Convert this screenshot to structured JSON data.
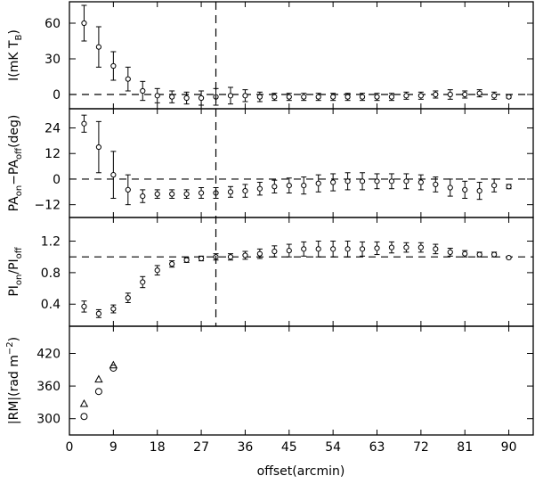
{
  "chart_data": {
    "type": "scatter",
    "x_axis": {
      "label": "offset(arcmin)",
      "range": [
        0,
        95
      ],
      "ticks": [
        0,
        9,
        18,
        27,
        36,
        45,
        54,
        63,
        72,
        81,
        90
      ]
    },
    "panels": [
      {
        "id": "intensity",
        "ylabel_parts": [
          "I(mK T",
          "B",
          ")"
        ],
        "ylim": [
          -12,
          78
        ],
        "yticks": [
          0,
          30,
          60
        ],
        "reference_y": 0,
        "marker": "circle-errorbar",
        "points": [
          {
            "x": 3,
            "y": 60,
            "err": 15
          },
          {
            "x": 6,
            "y": 40,
            "err": 17
          },
          {
            "x": 9,
            "y": 24,
            "err": 12
          },
          {
            "x": 12,
            "y": 13,
            "err": 10
          },
          {
            "x": 15,
            "y": 3,
            "err": 8
          },
          {
            "x": 18,
            "y": -1,
            "err": 6
          },
          {
            "x": 21,
            "y": -2,
            "err": 5
          },
          {
            "x": 24,
            "y": -3,
            "err": 5
          },
          {
            "x": 27,
            "y": -3,
            "err": 6
          },
          {
            "x": 30,
            "y": -2,
            "err": 7
          },
          {
            "x": 33,
            "y": -1,
            "err": 7
          },
          {
            "x": 36,
            "y": -1,
            "err": 5
          },
          {
            "x": 39,
            "y": -2,
            "err": 4
          },
          {
            "x": 42,
            "y": -2,
            "err": 3
          },
          {
            "x": 45,
            "y": -2,
            "err": 3
          },
          {
            "x": 48,
            "y": -2,
            "err": 3
          },
          {
            "x": 51,
            "y": -2,
            "err": 3
          },
          {
            "x": 54,
            "y": -2,
            "err": 3
          },
          {
            "x": 57,
            "y": -2,
            "err": 3
          },
          {
            "x": 60,
            "y": -2,
            "err": 3
          },
          {
            "x": 63,
            "y": -2,
            "err": 3
          },
          {
            "x": 66,
            "y": -2,
            "err": 3
          },
          {
            "x": 69,
            "y": -1,
            "err": 3
          },
          {
            "x": 72,
            "y": -1,
            "err": 3
          },
          {
            "x": 75,
            "y": 0,
            "err": 3
          },
          {
            "x": 78,
            "y": 0,
            "err": 4
          },
          {
            "x": 81,
            "y": 0,
            "err": 3
          },
          {
            "x": 84,
            "y": 1,
            "err": 3
          },
          {
            "x": 87,
            "y": -1,
            "err": 3
          },
          {
            "x": 90,
            "y": -2,
            "err": 1
          }
        ]
      },
      {
        "id": "pa",
        "ylabel_parts": [
          "PA",
          "on",
          "−PA",
          "off",
          "(deg)"
        ],
        "ylim": [
          -18,
          33
        ],
        "yticks": [
          -12,
          0,
          12,
          24
        ],
        "reference_y": 0,
        "marker": "circle-errorbar",
        "points": [
          {
            "x": 3,
            "y": 26,
            "err": 4
          },
          {
            "x": 6,
            "y": 15,
            "err": 12
          },
          {
            "x": 9,
            "y": 2,
            "err": 11
          },
          {
            "x": 12,
            "y": -5,
            "err": 7
          },
          {
            "x": 15,
            "y": -8,
            "err": 3
          },
          {
            "x": 18,
            "y": -7,
            "err": 2
          },
          {
            "x": 21,
            "y": -7,
            "err": 2
          },
          {
            "x": 24,
            "y": -7,
            "err": 2
          },
          {
            "x": 27,
            "y": -6.5,
            "err": 2.5
          },
          {
            "x": 30,
            "y": -6.5,
            "err": 2.5
          },
          {
            "x": 33,
            "y": -6,
            "err": 2.5
          },
          {
            "x": 36,
            "y": -5.5,
            "err": 3
          },
          {
            "x": 39,
            "y": -4.5,
            "err": 3
          },
          {
            "x": 42,
            "y": -3.5,
            "err": 3
          },
          {
            "x": 45,
            "y": -3,
            "err": 3.5
          },
          {
            "x": 48,
            "y": -3,
            "err": 4
          },
          {
            "x": 51,
            "y": -2,
            "err": 4
          },
          {
            "x": 54,
            "y": -1.5,
            "err": 4
          },
          {
            "x": 57,
            "y": -1,
            "err": 4
          },
          {
            "x": 60,
            "y": -1,
            "err": 4
          },
          {
            "x": 63,
            "y": -1,
            "err": 3.5
          },
          {
            "x": 66,
            "y": -1,
            "err": 3.5
          },
          {
            "x": 69,
            "y": -1,
            "err": 3.5
          },
          {
            "x": 72,
            "y": -1.5,
            "err": 3.5
          },
          {
            "x": 75,
            "y": -2.5,
            "err": 3.5
          },
          {
            "x": 78,
            "y": -4,
            "err": 4
          },
          {
            "x": 81,
            "y": -5,
            "err": 4
          },
          {
            "x": 84,
            "y": -5.5,
            "err": 4
          },
          {
            "x": 87,
            "y": -3,
            "err": 3
          },
          {
            "x": 90,
            "y": -3.5,
            "err": 1
          }
        ]
      },
      {
        "id": "pi",
        "ylabel_parts": [
          "PI",
          "on",
          "/PI",
          "off"
        ],
        "ylim": [
          0.12,
          1.5
        ],
        "yticks": [
          0.4,
          0.8,
          1.2
        ],
        "reference_y": 1.0,
        "marker": "circle-errorbar",
        "points": [
          {
            "x": 3,
            "y": 0.37,
            "err": 0.07
          },
          {
            "x": 6,
            "y": 0.28,
            "err": 0.05
          },
          {
            "x": 9,
            "y": 0.34,
            "err": 0.05
          },
          {
            "x": 12,
            "y": 0.48,
            "err": 0.06
          },
          {
            "x": 15,
            "y": 0.68,
            "err": 0.07
          },
          {
            "x": 18,
            "y": 0.83,
            "err": 0.06
          },
          {
            "x": 21,
            "y": 0.91,
            "err": 0.04
          },
          {
            "x": 24,
            "y": 0.96,
            "err": 0.03
          },
          {
            "x": 27,
            "y": 0.98,
            "err": 0.03
          },
          {
            "x": 30,
            "y": 1.0,
            "err": 0.04
          },
          {
            "x": 33,
            "y": 1.0,
            "err": 0.04
          },
          {
            "x": 36,
            "y": 1.02,
            "err": 0.05
          },
          {
            "x": 39,
            "y": 1.04,
            "err": 0.06
          },
          {
            "x": 42,
            "y": 1.07,
            "err": 0.07
          },
          {
            "x": 45,
            "y": 1.08,
            "err": 0.08
          },
          {
            "x": 48,
            "y": 1.1,
            "err": 0.09
          },
          {
            "x": 51,
            "y": 1.1,
            "err": 0.1
          },
          {
            "x": 54,
            "y": 1.1,
            "err": 0.1
          },
          {
            "x": 57,
            "y": 1.1,
            "err": 0.1
          },
          {
            "x": 60,
            "y": 1.1,
            "err": 0.09
          },
          {
            "x": 63,
            "y": 1.11,
            "err": 0.08
          },
          {
            "x": 66,
            "y": 1.12,
            "err": 0.07
          },
          {
            "x": 69,
            "y": 1.12,
            "err": 0.06
          },
          {
            "x": 72,
            "y": 1.12,
            "err": 0.06
          },
          {
            "x": 75,
            "y": 1.1,
            "err": 0.06
          },
          {
            "x": 78,
            "y": 1.06,
            "err": 0.05
          },
          {
            "x": 81,
            "y": 1.04,
            "err": 0.04
          },
          {
            "x": 84,
            "y": 1.03,
            "err": 0.03
          },
          {
            "x": 87,
            "y": 1.03,
            "err": 0.03
          },
          {
            "x": 90,
            "y": 0.99,
            "err": 0.01
          }
        ]
      },
      {
        "id": "rm",
        "ylabel_parts": [
          "|RM|(rad m",
          "−2",
          ")"
        ],
        "ylim": [
          270,
          470
        ],
        "yticks": [
          300,
          360,
          420
        ],
        "marker": "open-markers",
        "series": [
          {
            "marker": "circle",
            "points": [
              {
                "x": 3,
                "y": 304
              },
              {
                "x": 6,
                "y": 350
              },
              {
                "x": 9,
                "y": 393
              }
            ]
          },
          {
            "marker": "triangle",
            "points": [
              {
                "x": 3,
                "y": 327
              },
              {
                "x": 6,
                "y": 372
              },
              {
                "x": 9,
                "y": 398
              }
            ]
          }
        ]
      }
    ],
    "vertical_reference_x": 30
  }
}
